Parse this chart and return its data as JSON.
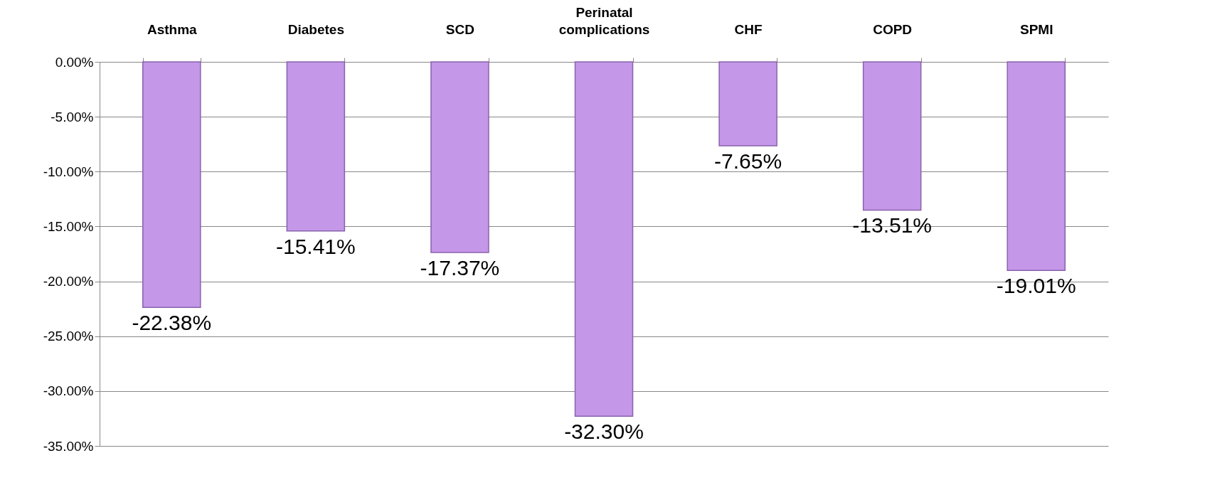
{
  "chart_data": {
    "type": "bar",
    "categories": [
      "Asthma",
      "Diabetes",
      "SCD",
      "Perinatal complications",
      "CHF",
      "COPD",
      "SPMI"
    ],
    "values": [
      -22.38,
      -15.41,
      -17.37,
      -32.3,
      -7.65,
      -13.51,
      -19.01
    ],
    "value_labels": [
      "-22.38%",
      "-15.41%",
      "-17.37%",
      "-32.30%",
      "-7.65%",
      "-13.51%",
      "-19.01%"
    ],
    "color": "#c497e8",
    "ylim": [
      -35,
      0
    ],
    "yticks": [
      {
        "value": 0,
        "label": "0.00%"
      },
      {
        "value": -5,
        "label": "-5.00%"
      },
      {
        "value": -10,
        "label": "-10.00%"
      },
      {
        "value": -15,
        "label": "-15.00%"
      },
      {
        "value": -20,
        "label": "-20.00%"
      },
      {
        "value": -25,
        "label": "-25.00%"
      },
      {
        "value": -30,
        "label": "-30.00%"
      },
      {
        "value": -35,
        "label": "-35.00%"
      }
    ],
    "grid": "y"
  }
}
